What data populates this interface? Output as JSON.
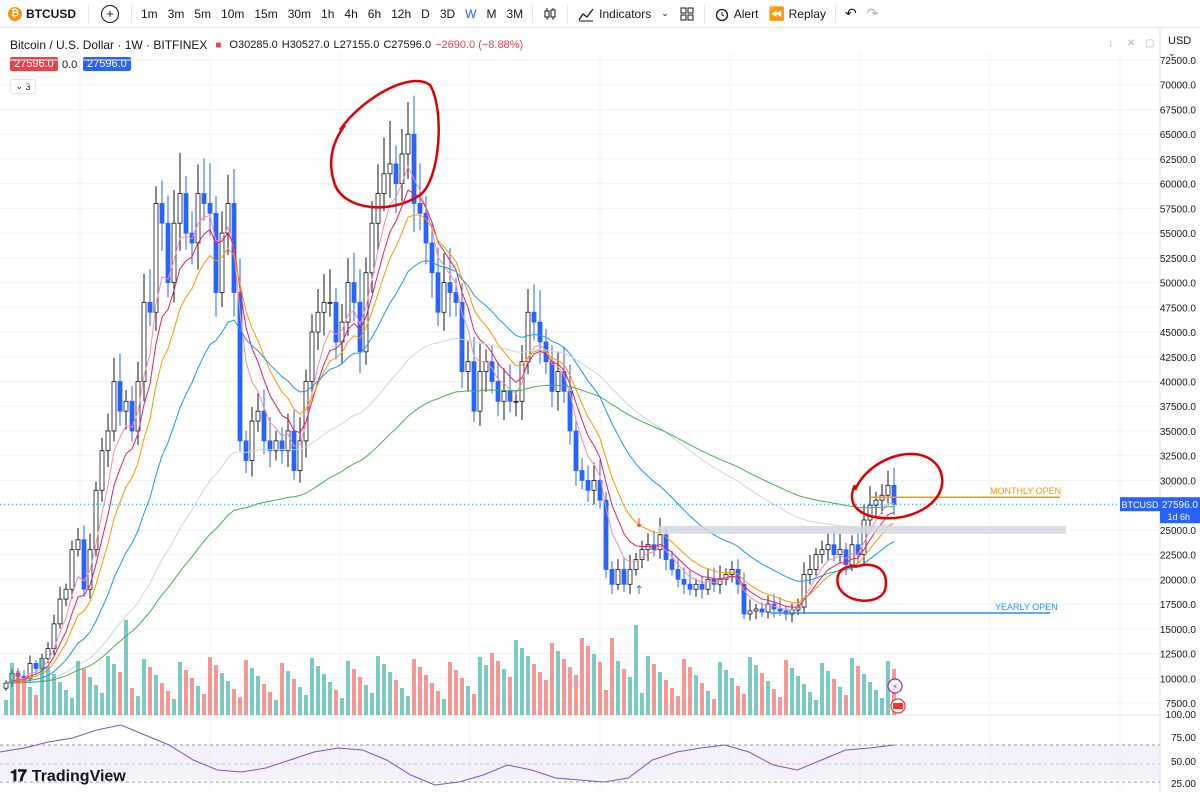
{
  "toolbar": {
    "symbol": "BTCUSD",
    "coin_icon": "bitcoin-icon",
    "intervals": [
      "1m",
      "3m",
      "5m",
      "10m",
      "15m",
      "30m",
      "1h",
      "4h",
      "6h",
      "12h",
      "D",
      "3D",
      "W",
      "M",
      "3M"
    ],
    "active_interval": "W",
    "indicators_label": "Indicators",
    "alert_label": "Alert",
    "replay_label": "Replay"
  },
  "legend": {
    "title": "Bitcoin / U.S. Dollar · 1W · BITFINEX",
    "open": "O30285.0",
    "high": "H30527.0",
    "low": "L27155.0",
    "close": "C27596.0",
    "change": "−2690.0 (−8.88%)",
    "bid": "27596.0",
    "spread": "0.0",
    "ask": "27596.0",
    "collapse_count": "3"
  },
  "price_axis": {
    "currency": "USD",
    "labels": [
      "72500.0",
      "70000.0",
      "67500.0",
      "65000.0",
      "62500.0",
      "60000.0",
      "57500.0",
      "55000.0",
      "52500.0",
      "50000.0",
      "47500.0",
      "45000.0",
      "42500.0",
      "40000.0",
      "37500.0",
      "35000.0",
      "32500.0",
      "30000.0",
      "27500.0",
      "25000.0",
      "22500.0",
      "20000.0",
      "17500.0",
      "15000.0",
      "12500.0",
      "10000.0",
      "7500.0"
    ],
    "symbol_tag": "BTCUSD",
    "last_price": "27596.0",
    "countdown": "1d 6h"
  },
  "rsi_axis": {
    "labels": [
      "100.00",
      "75.00",
      "50.00",
      "25.00"
    ]
  },
  "annotations": {
    "monthly_open": "MONTHLY OPEN",
    "yearly_open": "YEARLY OPEN"
  },
  "colors": {
    "bull": "#ffffff",
    "bear": "#2962ff",
    "vol_up": "#26a69a",
    "vol_down": "#ef5350",
    "ema_fast": "#e91e63",
    "ema_mid": "#f48fb1",
    "ema_slow": "#ff9800",
    "sma_blue": "#2196f3",
    "sma_green": "#4caf50",
    "sma_grey": "#d1d4dc",
    "rsi": "#7e57c2",
    "markup": "#e00000"
  },
  "watermark": "TradingView"
}
